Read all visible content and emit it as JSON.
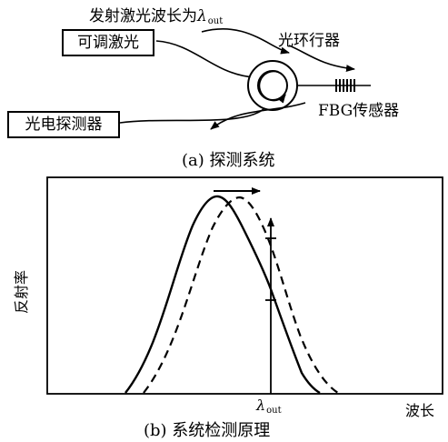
{
  "part_a": {
    "emission_text": "发射激光波长为",
    "lambda_symbol": "λ",
    "lambda_subscript": "out",
    "tunable_laser": "可调激光",
    "circulator": "光环行器",
    "fbg_sensor": "FBG传感器",
    "photodetector": "光电探测器",
    "caption": "(a) 探测系统"
  },
  "part_b": {
    "ylabel": "反射率",
    "xlabel": "波长",
    "lambda_symbol": "λ",
    "lambda_subscript": "out",
    "caption": "(b) 系统检测原理"
  },
  "colors": {
    "stroke": "#000000",
    "background": "#ffffff"
  },
  "icons": [
    "circulator-ring-icon",
    "fbg-grating-icon",
    "arrow-icon"
  ]
}
